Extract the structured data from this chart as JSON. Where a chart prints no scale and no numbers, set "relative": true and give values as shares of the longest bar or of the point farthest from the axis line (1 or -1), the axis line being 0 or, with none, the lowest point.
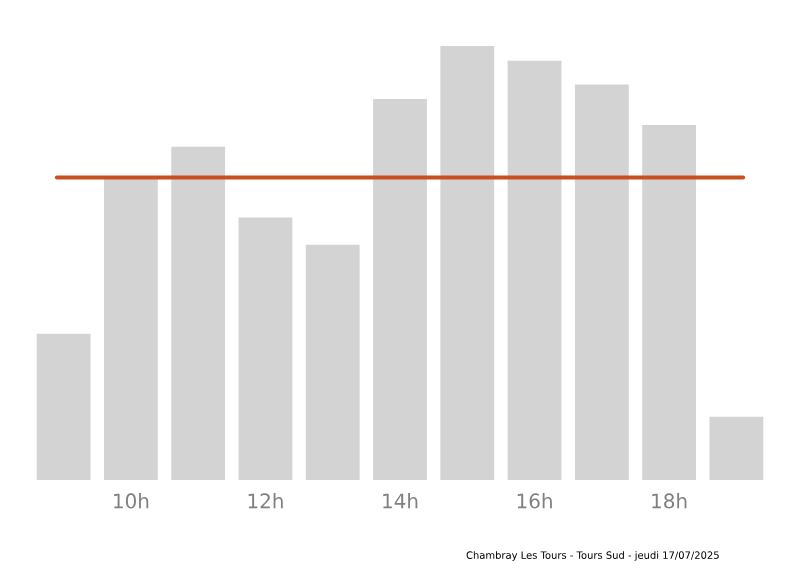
{
  "chart_data": {
    "type": "bar",
    "relative": true,
    "categories": [
      null,
      "10h",
      null,
      "12h",
      null,
      "14h",
      null,
      "16h",
      null,
      "18h",
      null
    ],
    "values": [
      0.337,
      0.695,
      0.768,
      0.605,
      0.542,
      0.878,
      1,
      0.966,
      0.911,
      0.818,
      0.146
    ],
    "color": "#d3d3d3",
    "ref_lines": [
      {
        "axis": "y",
        "value": 0.697,
        "color": "#c8501e"
      }
    ],
    "annotations": [
      "Chambray Les Tours - Tours Sud - jeudi 17/07/2025"
    ]
  }
}
